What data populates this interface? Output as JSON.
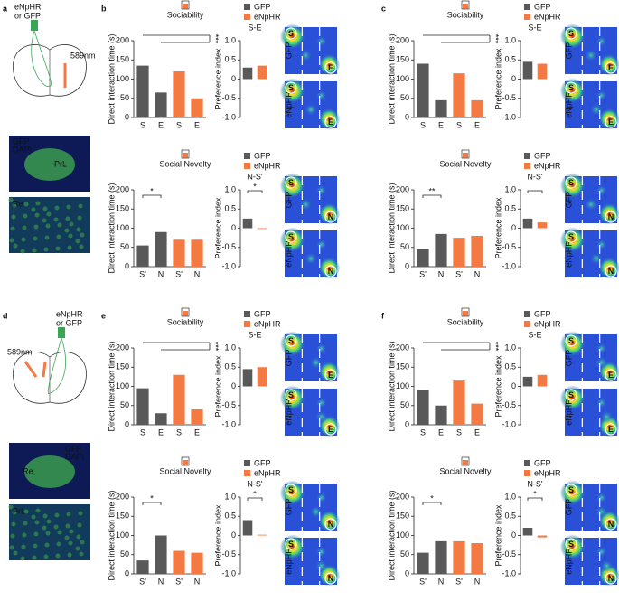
{
  "schematics": [
    {
      "label": "a",
      "virus": [
        "eNpHR",
        "or GFP"
      ],
      "laser": "589nm",
      "stain": [
        "GFP",
        "DAPI"
      ],
      "regions": [
        "PrL",
        "Re"
      ]
    },
    {
      "label": "d",
      "virus": [
        "eNpHR",
        "or GFP"
      ],
      "laser": "589nm",
      "stain": [
        "GFP",
        "DAPI"
      ],
      "regions": [
        "Re",
        "PrL"
      ]
    }
  ],
  "panels": [
    {
      "label": "b",
      "rows": [
        {
          "condition": "Sociability",
          "legend": [
            "GFP",
            "eNpHR"
          ],
          "heatmap_labels": [
            "GFP",
            "eNpHR"
          ],
          "zones": [
            "S",
            "E"
          ]
        },
        {
          "condition": "Social Novelty",
          "legend": [
            "GFP",
            "eNpHR"
          ],
          "heatmap_labels": [
            "GFP",
            "eNpHR"
          ],
          "zones": [
            "S",
            "N"
          ]
        }
      ]
    },
    {
      "label": "c",
      "rows": [
        {
          "condition": "Sociability",
          "legend": [
            "GFP",
            "eNpHR"
          ],
          "heatmap_labels": [
            "GFP",
            "eNpHR"
          ],
          "zones": [
            "S",
            "E"
          ]
        },
        {
          "condition": "Social Novelty",
          "legend": [
            "GFP",
            "eNpHR"
          ],
          "heatmap_labels": [
            "GFP",
            "eNpHR"
          ],
          "zones": [
            "S",
            "N"
          ]
        }
      ]
    },
    {
      "label": "e",
      "rows": [
        {
          "condition": "Sociability",
          "legend": [
            "GFP",
            "eNpHR"
          ],
          "heatmap_labels": [
            "GFP",
            "eNpHR"
          ],
          "zones": [
            "S",
            "E"
          ]
        },
        {
          "condition": "Social Novelty",
          "legend": [
            "GFP",
            "eNpHR"
          ],
          "heatmap_labels": [
            "GFP",
            "eNpHR"
          ],
          "zones": [
            "S",
            "N"
          ]
        }
      ]
    },
    {
      "label": "f",
      "rows": [
        {
          "condition": "Sociability",
          "legend": [
            "GFP",
            "eNpHR"
          ],
          "heatmap_labels": [
            "GFP",
            "eNpHR"
          ],
          "zones": [
            "S",
            "E"
          ]
        },
        {
          "condition": "Social Novelty",
          "legend": [
            "GFP",
            "eNpHR"
          ],
          "heatmap_labels": [
            "GFP",
            "eNpHR"
          ],
          "zones": [
            "S",
            "N"
          ]
        }
      ]
    }
  ],
  "chart_data": [
    {
      "type": "bar",
      "ylabel": "Direct interaction time (s)",
      "categories": [
        "S",
        "E",
        "S",
        "E"
      ],
      "values": [
        135,
        65,
        120,
        50
      ],
      "colors": [
        "#595959",
        "#595959",
        "#f47a44",
        "#f47a44"
      ],
      "ylim": [
        0,
        200
      ],
      "yticks": [
        0,
        50,
        100,
        150,
        200
      ],
      "significance": "***"
    },
    {
      "type": "bar",
      "ylabel": "Preference index",
      "values": [
        0.3,
        0.35
      ],
      "colors": [
        "#595959",
        "#f47a44"
      ],
      "ylim": [
        -1,
        1
      ],
      "yticks": [
        {
          "value": -1,
          "label": "-1.0"
        },
        -0.5,
        0,
        0.5,
        {
          "value": 1,
          "label": "1.0"
        }
      ],
      "comparison": "S-E"
    },
    {
      "type": "bar",
      "ylabel": "Direct interaction time (s)",
      "categories": [
        "S'",
        "N",
        "S'",
        "N"
      ],
      "values": [
        55,
        90,
        70,
        70
      ],
      "colors": [
        "#595959",
        "#595959",
        "#f47a44",
        "#f47a44"
      ],
      "ylim": [
        0,
        200
      ],
      "yticks": [
        0,
        50,
        100,
        150,
        200
      ],
      "significance": "*"
    },
    {
      "type": "bar",
      "ylabel": "Preference index",
      "values": [
        0.25,
        -0.02
      ],
      "colors": [
        "#595959",
        "#f47a44"
      ],
      "ylim": [
        -1,
        1
      ],
      "yticks": [
        {
          "value": -1,
          "label": "-1.0"
        },
        -0.5,
        0,
        0.5,
        {
          "value": 1,
          "label": "1.0"
        }
      ],
      "comparison": "N-S'",
      "significance": "*"
    },
    {
      "type": "bar",
      "ylabel": "Direct interaction time (s)",
      "categories": [
        "S",
        "E",
        "S",
        "E"
      ],
      "values": [
        140,
        45,
        115,
        45
      ],
      "colors": [
        "#595959",
        "#595959",
        "#f47a44",
        "#f47a44"
      ],
      "ylim": [
        0,
        200
      ],
      "yticks": [
        0,
        50,
        100,
        150,
        200
      ],
      "significance": "***"
    },
    {
      "type": "bar",
      "ylabel": "Preference index",
      "values": [
        0.45,
        0.4
      ],
      "colors": [
        "#595959",
        "#f47a44"
      ],
      "ylim": [
        -1,
        1
      ],
      "yticks": [
        {
          "value": -1,
          "label": "-1.0"
        },
        -0.5,
        0,
        0.5,
        {
          "value": 1,
          "label": "1.0"
        }
      ],
      "comparison": "S-E"
    },
    {
      "type": "bar",
      "ylabel": "Direct interaction time (s)",
      "categories": [
        "S'",
        "N",
        "S'",
        "N"
      ],
      "values": [
        45,
        85,
        75,
        80
      ],
      "colors": [
        "#595959",
        "#595959",
        "#f47a44",
        "#f47a44"
      ],
      "ylim": [
        0,
        200
      ],
      "yticks": [
        0,
        50,
        100,
        150,
        200
      ],
      "significance": "**"
    },
    {
      "type": "bar",
      "ylabel": "Preference index",
      "values": [
        0.25,
        0.15
      ],
      "colors": [
        "#595959",
        "#f47a44"
      ],
      "ylim": [
        -1,
        1
      ],
      "yticks": [
        {
          "value": -1,
          "label": "-1.0"
        },
        -0.5,
        0,
        0.5,
        {
          "value": 1,
          "label": "1.0"
        }
      ],
      "comparison": "N-S'"
    },
    {
      "type": "bar",
      "ylabel": "Direct interaction time (s)",
      "categories": [
        "S",
        "E",
        "S",
        "E"
      ],
      "values": [
        95,
        30,
        130,
        40
      ],
      "colors": [
        "#595959",
        "#595959",
        "#f47a44",
        "#f47a44"
      ],
      "ylim": [
        0,
        200
      ],
      "yticks": [
        0,
        50,
        100,
        150,
        200
      ],
      "significance": "***"
    },
    {
      "type": "bar",
      "ylabel": "Preference index",
      "values": [
        0.45,
        0.5
      ],
      "colors": [
        "#595959",
        "#f47a44"
      ],
      "ylim": [
        -1,
        1
      ],
      "yticks": [
        {
          "value": -1,
          "label": "-1.0"
        },
        -0.5,
        0,
        0.5,
        {
          "value": 1,
          "label": "1.0"
        }
      ],
      "comparison": "S-E"
    },
    {
      "type": "bar",
      "ylabel": "Direct interaction time (s)",
      "categories": [
        "S'",
        "N",
        "S'",
        "N"
      ],
      "values": [
        35,
        100,
        60,
        55
      ],
      "colors": [
        "#595959",
        "#595959",
        "#f47a44",
        "#f47a44"
      ],
      "ylim": [
        0,
        200
      ],
      "yticks": [
        0,
        50,
        100,
        150,
        200
      ],
      "significance": "*"
    },
    {
      "type": "bar",
      "ylabel": "Preference index",
      "values": [
        0.4,
        0.02
      ],
      "colors": [
        "#595959",
        "#f47a44"
      ],
      "ylim": [
        -1,
        1
      ],
      "yticks": [
        {
          "value": -1,
          "label": "-1.0"
        },
        -0.5,
        0,
        0.5,
        {
          "value": 1,
          "label": "1.0"
        }
      ],
      "comparison": "N-S'",
      "significance": "*"
    },
    {
      "type": "bar",
      "ylabel": "Direct interaction time (s)",
      "categories": [
        "S",
        "E",
        "S",
        "E"
      ],
      "values": [
        90,
        50,
        115,
        55
      ],
      "colors": [
        "#595959",
        "#595959",
        "#f47a44",
        "#f47a44"
      ],
      "ylim": [
        0,
        200
      ],
      "yticks": [
        0,
        50,
        100,
        150,
        200
      ],
      "significance": "***"
    },
    {
      "type": "bar",
      "ylabel": "Preference index",
      "values": [
        0.25,
        0.3
      ],
      "colors": [
        "#595959",
        "#f47a44"
      ],
      "ylim": [
        -1,
        1
      ],
      "yticks": [
        {
          "value": -1,
          "label": "-1.0"
        },
        -0.5,
        0,
        0.5,
        {
          "value": 1,
          "label": "1.0"
        }
      ],
      "comparison": "S-E"
    },
    {
      "type": "bar",
      "ylabel": "Direct interaction time (s)",
      "categories": [
        "S'",
        "N",
        "S'",
        "N"
      ],
      "values": [
        55,
        85,
        85,
        80
      ],
      "colors": [
        "#595959",
        "#595959",
        "#f47a44",
        "#f47a44"
      ],
      "ylim": [
        0,
        200
      ],
      "yticks": [
        0,
        50,
        100,
        150,
        200
      ],
      "significance": "*"
    },
    {
      "type": "bar",
      "ylabel": "Preference index",
      "values": [
        0.2,
        -0.05
      ],
      "colors": [
        "#595959",
        "#f47a44"
      ],
      "ylim": [
        -1,
        1
      ],
      "yticks": [
        {
          "value": -1,
          "label": "-1.0"
        },
        -0.5,
        0,
        0.5,
        {
          "value": 1,
          "label": "1.0"
        }
      ],
      "comparison": "N-S'",
      "significance": "*"
    }
  ]
}
